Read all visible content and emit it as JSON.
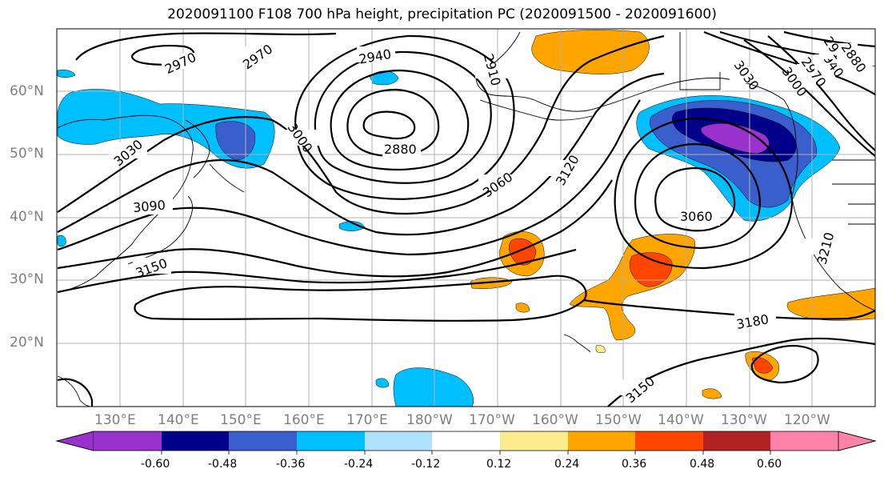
{
  "title": "2020091100 F108 700 hPa height, precipitation PC (2020091500 - 2020091600)",
  "latitude_labels": [
    "60°N",
    "50°N",
    "40°N",
    "30°N",
    "20°N"
  ],
  "longitude_labels": [
    "130°E",
    "140°E",
    "150°E",
    "160°E",
    "170°E",
    "180°W",
    "170°W",
    "160°W",
    "150°W",
    "140°W",
    "130°W",
    "120°W"
  ],
  "contour_labels": {
    "c2970a": "2970",
    "c2970b": "2970",
    "c2940": "2940",
    "c2910": "2910",
    "c3030a": "3030",
    "c3000a": "3000",
    "c2880": "2880",
    "c3090": "3090",
    "c3060a": "3060",
    "c3120": "3120",
    "c3150a": "3150",
    "c3060b": "3060",
    "c3030b": "3030",
    "c3000b": "3000",
    "c2970c": "2970",
    "c2940b": "2940",
    "c2910b": "2910",
    "c2880b": "2880",
    "c3210": "3210",
    "c3180": "3180",
    "c3150b": "3150"
  },
  "colorbar": {
    "ticks": [
      "-0.60",
      "-0.48",
      "-0.36",
      "-0.24",
      "-0.12",
      "0.12",
      "0.24",
      "0.36",
      "0.48",
      "0.60"
    ],
    "colors": [
      "#9932cc",
      "#00008b",
      "#3a5fcd",
      "#00bfff",
      "#b0e2ff",
      "#ffffff",
      "#fcec8b",
      "#ffa500",
      "#ff4500",
      "#b22222",
      "#ff82ab"
    ]
  }
}
